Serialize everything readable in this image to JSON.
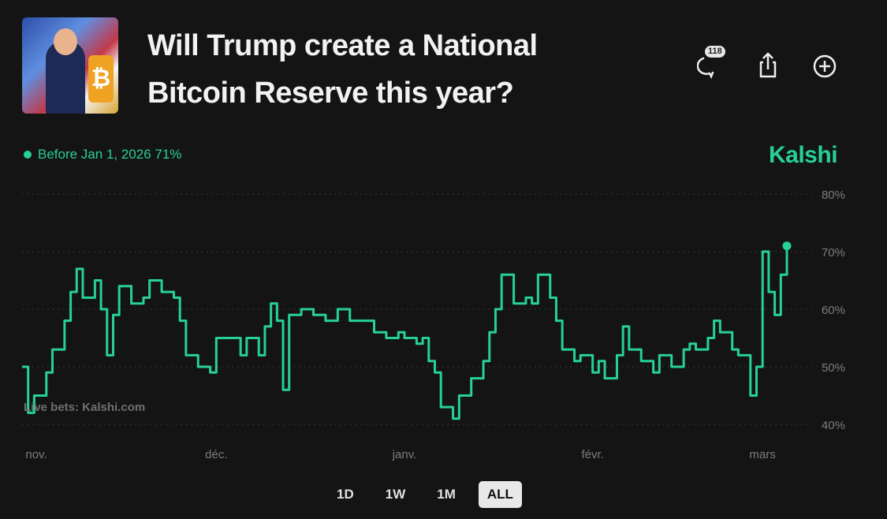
{
  "header": {
    "title": "Will Trump create a National Bitcoin Reserve this year?",
    "comment_count": "118",
    "icons": [
      "comment-icon",
      "share-icon",
      "add-icon"
    ]
  },
  "legend": {
    "label": "Before Jan 1, 2026 71%",
    "color": "#27d196"
  },
  "brand": "Kalshi",
  "watermark": "Live bets: Kalshi.com",
  "ranges": {
    "items": [
      "1D",
      "1W",
      "1M",
      "ALL"
    ],
    "selected": "ALL"
  },
  "chart_data": {
    "type": "line",
    "step": true,
    "series": [
      {
        "color": "#27d196",
        "points": [
          [
            "2024-10-30",
            50
          ],
          [
            "2024-10-31",
            42
          ],
          [
            "2024-11-01",
            45
          ],
          [
            "2024-11-03",
            49
          ],
          [
            "2024-11-04",
            53
          ],
          [
            "2024-11-06",
            58
          ],
          [
            "2024-11-07",
            63
          ],
          [
            "2024-11-08",
            67
          ],
          [
            "2024-11-09",
            62
          ],
          [
            "2024-11-11",
            65
          ],
          [
            "2024-11-12",
            60
          ],
          [
            "2024-11-13",
            52
          ],
          [
            "2024-11-14",
            59
          ],
          [
            "2024-11-15",
            64
          ],
          [
            "2024-11-17",
            61
          ],
          [
            "2024-11-19",
            62
          ],
          [
            "2024-11-20",
            65
          ],
          [
            "2024-11-22",
            63
          ],
          [
            "2024-11-24",
            62
          ],
          [
            "2024-11-25",
            58
          ],
          [
            "2024-11-26",
            52
          ],
          [
            "2024-11-28",
            50
          ],
          [
            "2024-11-30",
            49
          ],
          [
            "2024-12-01",
            55
          ],
          [
            "2024-12-03",
            55
          ],
          [
            "2024-12-05",
            52
          ],
          [
            "2024-12-06",
            55
          ],
          [
            "2024-12-08",
            52
          ],
          [
            "2024-12-09",
            57
          ],
          [
            "2024-12-10",
            61
          ],
          [
            "2024-12-11",
            58
          ],
          [
            "2024-12-12",
            46
          ],
          [
            "2024-12-13",
            59
          ],
          [
            "2024-12-15",
            60
          ],
          [
            "2024-12-17",
            59
          ],
          [
            "2024-12-19",
            58
          ],
          [
            "2024-12-21",
            60
          ],
          [
            "2024-12-23",
            58
          ],
          [
            "2024-12-25",
            58
          ],
          [
            "2024-12-27",
            56
          ],
          [
            "2024-12-29",
            55
          ],
          [
            "2024-12-31",
            56
          ],
          [
            "2025-01-01",
            55
          ],
          [
            "2025-01-03",
            54
          ],
          [
            "2025-01-04",
            55
          ],
          [
            "2025-01-05",
            51
          ],
          [
            "2025-01-06",
            49
          ],
          [
            "2025-01-07",
            43
          ],
          [
            "2025-01-09",
            41
          ],
          [
            "2025-01-10",
            45
          ],
          [
            "2025-01-12",
            48
          ],
          [
            "2025-01-14",
            51
          ],
          [
            "2025-01-15",
            56
          ],
          [
            "2025-01-16",
            60
          ],
          [
            "2025-01-17",
            66
          ],
          [
            "2025-01-18",
            66
          ],
          [
            "2025-01-19",
            61
          ],
          [
            "2025-01-21",
            62
          ],
          [
            "2025-01-22",
            61
          ],
          [
            "2025-01-23",
            66
          ],
          [
            "2025-01-25",
            62
          ],
          [
            "2025-01-26",
            58
          ],
          [
            "2025-01-27",
            53
          ],
          [
            "2025-01-29",
            51
          ],
          [
            "2025-01-30",
            52
          ],
          [
            "2025-02-01",
            49
          ],
          [
            "2025-02-02",
            51
          ],
          [
            "2025-02-03",
            48
          ],
          [
            "2025-02-05",
            52
          ],
          [
            "2025-02-06",
            57
          ],
          [
            "2025-02-07",
            53
          ],
          [
            "2025-02-09",
            51
          ],
          [
            "2025-02-11",
            49
          ],
          [
            "2025-02-12",
            52
          ],
          [
            "2025-02-14",
            50
          ],
          [
            "2025-02-16",
            53
          ],
          [
            "2025-02-17",
            54
          ],
          [
            "2025-02-18",
            53
          ],
          [
            "2025-02-20",
            55
          ],
          [
            "2025-02-21",
            58
          ],
          [
            "2025-02-22",
            56
          ],
          [
            "2025-02-24",
            53
          ],
          [
            "2025-02-25",
            52
          ],
          [
            "2025-02-26",
            52
          ],
          [
            "2025-02-27",
            45
          ],
          [
            "2025-02-28",
            50
          ],
          [
            "2025-03-01",
            70
          ],
          [
            "2025-03-02",
            63
          ],
          [
            "2025-03-03",
            59
          ],
          [
            "2025-03-04",
            66
          ],
          [
            "2025-03-05",
            71
          ]
        ]
      }
    ],
    "xlim": [
      "2024-10-30",
      "2025-03-05"
    ],
    "x_ticks": [
      [
        "2024-11-01",
        "nov."
      ],
      [
        "2024-12-01",
        "déc."
      ],
      [
        "2025-01-01",
        "janv."
      ],
      [
        "2025-02-01",
        "févr."
      ],
      [
        "2025-03-01",
        "mars"
      ]
    ],
    "ylim": [
      40,
      80
    ],
    "y_ticks": [
      "40%",
      "50%",
      "60%",
      "70%",
      "80%"
    ],
    "y_tick_values": [
      40,
      50,
      60,
      70,
      80
    ],
    "grid": true,
    "grid_style": "dotted",
    "xlabel": "",
    "ylabel": ""
  }
}
